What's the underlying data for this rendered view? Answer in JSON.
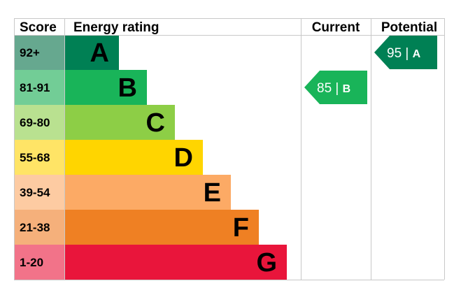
{
  "chart_data": {
    "type": "bar",
    "headers": {
      "score": "Score",
      "rating": "Energy rating",
      "current": "Current",
      "potential": "Potential"
    },
    "bands": [
      {
        "letter": "A",
        "range": "92+",
        "color": "#008054",
        "score_color": "#66a88f"
      },
      {
        "letter": "B",
        "range": "81-91",
        "color": "#19b459",
        "score_color": "#72cd96"
      },
      {
        "letter": "C",
        "range": "69-80",
        "color": "#8dce46",
        "score_color": "#b9e190"
      },
      {
        "letter": "D",
        "range": "55-68",
        "color": "#ffd500",
        "score_color": "#ffe466"
      },
      {
        "letter": "E",
        "range": "39-54",
        "color": "#fcaa65",
        "score_color": "#fdcba2"
      },
      {
        "letter": "F",
        "range": "21-38",
        "color": "#ef8023",
        "score_color": "#f5b07b"
      },
      {
        "letter": "G",
        "range": "1-20",
        "color": "#e9153b",
        "score_color": "#f27389"
      }
    ],
    "current": {
      "value": 85,
      "band": "B",
      "color": "#19b459",
      "sep": "|"
    },
    "potential": {
      "value": 95,
      "band": "A",
      "color": "#008054",
      "sep": "|"
    }
  }
}
